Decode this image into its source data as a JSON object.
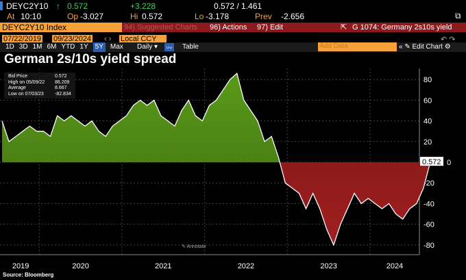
{
  "quote": {
    "ticker": "DEYC2Y10",
    "last": "0.572",
    "change": "+3.228",
    "bid_ask": "0.572 / 1.461",
    "at_label": "At",
    "time": "10:10",
    "op_label": "Op",
    "open": "-3.027",
    "hi_label": "Hi",
    "high": "0.572",
    "lo_label": "Lo",
    "low": "-3.178",
    "prev_label": "Prev",
    "prev": "-2.656"
  },
  "toolbar": {
    "security": "DEYC2Y10 Index",
    "suggested": "94) Suggested Charts",
    "actions": "96) Actions",
    "edit": "97) Edit",
    "title": "G 1074: Germany 2s10s yield"
  },
  "range": {
    "start": "07/22/2019",
    "end": "09/23/2024",
    "currency": "Local CCY",
    "periods": [
      "1D",
      "3D",
      "1M",
      "6M",
      "YTD",
      "1Y",
      "5Y",
      "Max"
    ],
    "active": "5Y",
    "frequency": "Daily",
    "table": "Table",
    "add_data_placeholder": "Add Data",
    "edit_chart": "Edit Chart"
  },
  "chart_title": "German 2s/10s yield spread",
  "legend": [
    {
      "label": "Bid Price",
      "value": "0.572"
    },
    {
      "label": "High on 05/09/22",
      "value": "86.209"
    },
    {
      "label": "Average",
      "value": "8.667"
    },
    {
      "label": "Low on 07/03/23",
      "value": "-82.834"
    }
  ],
  "annotate": "Annotate",
  "source": "Source: Bloomberg",
  "chart_data": {
    "type": "area",
    "title": "German 2s/10s yield spread",
    "ylim": [
      -90,
      90
    ],
    "yticks": [
      80,
      60,
      40,
      20,
      0,
      -20,
      -40,
      -60,
      -80
    ],
    "xlabels": [
      "2019",
      "2020",
      "2021",
      "2022",
      "2023",
      "2024"
    ],
    "x_start": 2019.55,
    "x_end": 2024.73,
    "last_value": "0.572",
    "values": [
      40,
      20,
      25,
      30,
      35,
      30,
      30,
      25,
      45,
      40,
      45,
      40,
      35,
      40,
      30,
      25,
      35,
      40,
      45,
      55,
      60,
      55,
      60,
      45,
      40,
      35,
      50,
      60,
      45,
      40,
      55,
      60,
      70,
      80,
      86,
      60,
      50,
      40,
      20,
      25,
      5,
      -20,
      -25,
      -30,
      -45,
      -30,
      -45,
      -65,
      -80,
      -60,
      -45,
      -30,
      -40,
      -35,
      -40,
      -45,
      -40,
      -50,
      -55,
      -45,
      -40,
      -25,
      0.572
    ],
    "colors": {
      "positive": "#3d6b10",
      "negative": "#7a1414",
      "line": "#ffffff"
    }
  }
}
